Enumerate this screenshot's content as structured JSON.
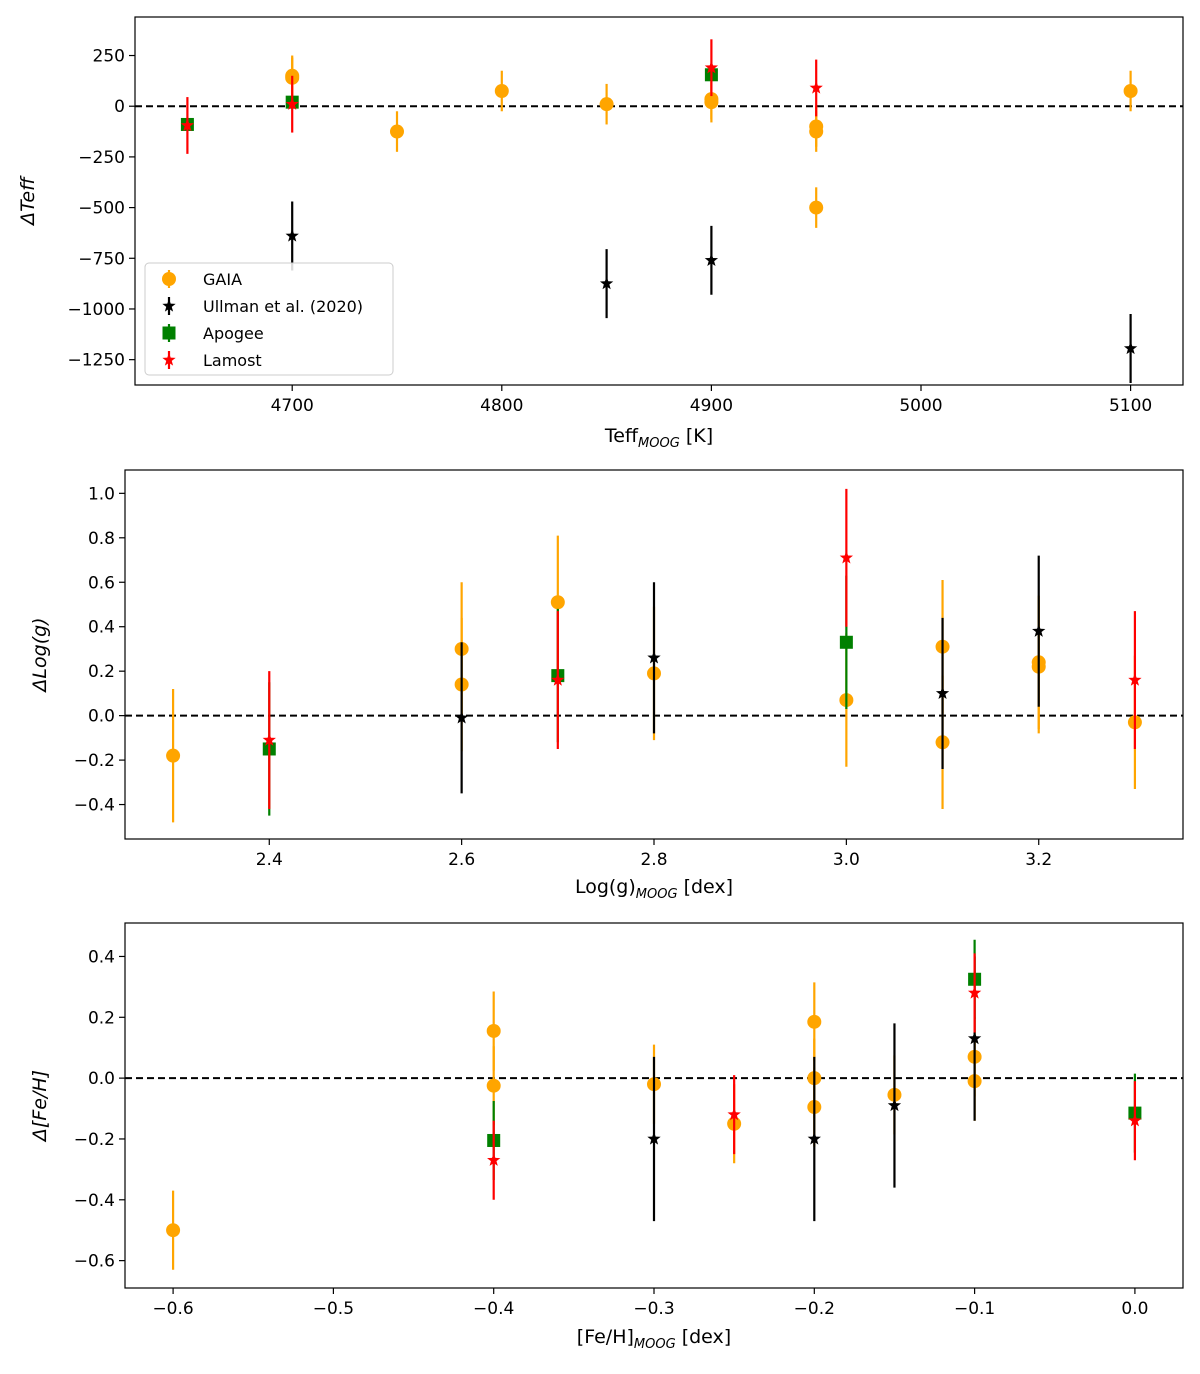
{
  "figure": {
    "legend": [
      {
        "name": "GAIA",
        "color": "#FFA500",
        "marker": "circle"
      },
      {
        "name": "Ullman et al. (2020)",
        "color": "#000000",
        "marker": "star"
      },
      {
        "name": "Apogee",
        "color": "#008000",
        "marker": "square"
      },
      {
        "name": "Lamost",
        "color": "#FF0000",
        "marker": "star"
      }
    ]
  },
  "chart_data": [
    {
      "type": "scatter",
      "title": "",
      "xlabel_main": "Teff",
      "xlabel_sub": "MOOG",
      "xlabel_unit": " [K]",
      "ylabel": "ΔTeff",
      "xlim": [
        4625,
        5125
      ],
      "ylim": [
        -1375,
        440
      ],
      "xticks": [
        4700,
        4800,
        4900,
        5000,
        5100
      ],
      "xtick_labels": [
        "4700",
        "4800",
        "4900",
        "5000",
        "5100"
      ],
      "yticks": [
        -1250,
        -1000,
        -750,
        -500,
        -250,
        0,
        250
      ],
      "ytick_labels": [
        "−1250",
        "−1000",
        "−750",
        "−500",
        "−250",
        "0",
        "250"
      ],
      "reference_line": 0,
      "legend_position": "lower-left",
      "series": [
        {
          "name": "GAIA",
          "color": "#FFA500",
          "marker": "circle",
          "points": [
            {
              "x": 4700,
              "y": 150,
              "err": 100
            },
            {
              "x": 4700,
              "y": 140,
              "err": 100
            },
            {
              "x": 4750,
              "y": -125,
              "err": 100
            },
            {
              "x": 4800,
              "y": 75,
              "err": 100
            },
            {
              "x": 4850,
              "y": 10,
              "err": 100
            },
            {
              "x": 4900,
              "y": 35,
              "err": 100
            },
            {
              "x": 4900,
              "y": 20,
              "err": 100
            },
            {
              "x": 4950,
              "y": -100,
              "err": 100
            },
            {
              "x": 4950,
              "y": -125,
              "err": 100
            },
            {
              "x": 4950,
              "y": -500,
              "err": 100
            },
            {
              "x": 5100,
              "y": 75,
              "err": 100
            }
          ]
        },
        {
          "name": "Ullman et al. (2020)",
          "color": "#000000",
          "marker": "star",
          "points": [
            {
              "x": 4700,
              "y": -640,
              "err": 170
            },
            {
              "x": 4850,
              "y": -875,
              "err": 170
            },
            {
              "x": 4900,
              "y": -760,
              "err": 170
            },
            {
              "x": 5100,
              "y": -1195,
              "err": 170
            }
          ]
        },
        {
          "name": "Apogee",
          "color": "#008000",
          "marker": "square",
          "points": [
            {
              "x": 4650,
              "y": -90,
              "err": 0
            },
            {
              "x": 4700,
              "y": 20,
              "err": 0
            },
            {
              "x": 4900,
              "y": 155,
              "err": 0
            }
          ]
        },
        {
          "name": "Lamost",
          "color": "#FF0000",
          "marker": "star",
          "points": [
            {
              "x": 4650,
              "y": -95,
              "err": 140
            },
            {
              "x": 4700,
              "y": 10,
              "err": 140
            },
            {
              "x": 4900,
              "y": 190,
              "err": 140
            },
            {
              "x": 4950,
              "y": 90,
              "err": 140
            }
          ]
        }
      ]
    },
    {
      "type": "scatter",
      "title": "",
      "xlabel_main": "Log(g)",
      "xlabel_sub": "MOOG",
      "xlabel_unit": " [dex]",
      "ylabel": "ΔLog(g)",
      "xlim": [
        2.25,
        3.35
      ],
      "ylim": [
        -0.555,
        1.105
      ],
      "xticks": [
        2.4,
        2.6,
        2.8,
        3.0,
        3.2
      ],
      "xtick_labels": [
        "2.4",
        "2.6",
        "2.8",
        "3.0",
        "3.2"
      ],
      "yticks": [
        -0.4,
        -0.2,
        0.0,
        0.2,
        0.4,
        0.6,
        0.8,
        1.0
      ],
      "ytick_labels": [
        "−0.4",
        "−0.2",
        "0.0",
        "0.2",
        "0.4",
        "0.6",
        "0.8",
        "1.0"
      ],
      "reference_line": 0,
      "series": [
        {
          "name": "GAIA",
          "color": "#FFA500",
          "marker": "circle",
          "points": [
            {
              "x": 2.3,
              "y": -0.18,
              "err": 0.3
            },
            {
              "x": 2.6,
              "y": 0.3,
              "err": 0.3
            },
            {
              "x": 2.6,
              "y": 0.14,
              "err": 0.3
            },
            {
              "x": 2.7,
              "y": 0.51,
              "err": 0.3
            },
            {
              "x": 2.8,
              "y": 0.19,
              "err": 0.3
            },
            {
              "x": 3.0,
              "y": 0.07,
              "err": 0.3
            },
            {
              "x": 3.1,
              "y": 0.31,
              "err": 0.3
            },
            {
              "x": 3.1,
              "y": -0.12,
              "err": 0.3
            },
            {
              "x": 3.2,
              "y": 0.24,
              "err": 0.3
            },
            {
              "x": 3.2,
              "y": 0.22,
              "err": 0.3
            },
            {
              "x": 3.3,
              "y": -0.03,
              "err": 0.3
            }
          ]
        },
        {
          "name": "Ullman et al. (2020)",
          "color": "#000000",
          "marker": "star",
          "points": [
            {
              "x": 2.6,
              "y": -0.01,
              "err": 0.34
            },
            {
              "x": 2.8,
              "y": 0.26,
              "err": 0.34
            },
            {
              "x": 3.1,
              "y": 0.1,
              "err": 0.34
            },
            {
              "x": 3.2,
              "y": 0.38,
              "err": 0.34
            }
          ]
        },
        {
          "name": "Apogee",
          "color": "#008000",
          "marker": "square",
          "points": [
            {
              "x": 2.4,
              "y": -0.15,
              "err": 0.3
            },
            {
              "x": 2.7,
              "y": 0.18,
              "err": 0.3
            },
            {
              "x": 3.0,
              "y": 0.33,
              "err": 0.3
            }
          ]
        },
        {
          "name": "Lamost",
          "color": "#FF0000",
          "marker": "star",
          "points": [
            {
              "x": 2.4,
              "y": -0.11,
              "err": 0.31
            },
            {
              "x": 2.7,
              "y": 0.16,
              "err": 0.31
            },
            {
              "x": 3.0,
              "y": 0.71,
              "err": 0.31
            },
            {
              "x": 3.3,
              "y": 0.16,
              "err": 0.31
            }
          ]
        }
      ]
    },
    {
      "type": "scatter",
      "title": "",
      "xlabel_main": "[Fe/H]",
      "xlabel_sub": "MOOG",
      "xlabel_unit": " [dex]",
      "ylabel": "Δ[Fe/H]",
      "xlim": [
        -0.63,
        0.03
      ],
      "ylim": [
        -0.69,
        0.51
      ],
      "xticks": [
        -0.6,
        -0.5,
        -0.4,
        -0.3,
        -0.2,
        -0.1,
        0.0
      ],
      "xtick_labels": [
        "−0.6",
        "−0.5",
        "−0.4",
        "−0.3",
        "−0.2",
        "−0.1",
        "0.0"
      ],
      "yticks": [
        -0.6,
        -0.4,
        -0.2,
        0.0,
        0.2,
        0.4
      ],
      "ytick_labels": [
        "−0.6",
        "−0.4",
        "−0.2",
        "0.0",
        "0.2",
        "0.4"
      ],
      "reference_line": 0,
      "series": [
        {
          "name": "GAIA",
          "color": "#FFA500",
          "marker": "circle",
          "points": [
            {
              "x": -0.6,
              "y": -0.5,
              "err": 0.13
            },
            {
              "x": -0.4,
              "y": 0.155,
              "err": 0.13
            },
            {
              "x": -0.4,
              "y": -0.025,
              "err": 0.13
            },
            {
              "x": -0.3,
              "y": -0.02,
              "err": 0.13
            },
            {
              "x": -0.25,
              "y": -0.15,
              "err": 0.13
            },
            {
              "x": -0.2,
              "y": 0.185,
              "err": 0.13
            },
            {
              "x": -0.2,
              "y": 0.0,
              "err": 0.13
            },
            {
              "x": -0.2,
              "y": -0.095,
              "err": 0.13
            },
            {
              "x": -0.15,
              "y": -0.055,
              "err": 0.13
            },
            {
              "x": -0.1,
              "y": 0.07,
              "err": 0.13
            },
            {
              "x": -0.1,
              "y": -0.01,
              "err": 0.13
            }
          ]
        },
        {
          "name": "Ullman et al. (2020)",
          "color": "#000000",
          "marker": "star",
          "points": [
            {
              "x": -0.3,
              "y": -0.2,
              "err": 0.27
            },
            {
              "x": -0.2,
              "y": -0.2,
              "err": 0.27
            },
            {
              "x": -0.15,
              "y": -0.09,
              "err": 0.27
            },
            {
              "x": -0.1,
              "y": 0.13,
              "err": 0.27
            }
          ]
        },
        {
          "name": "Apogee",
          "color": "#008000",
          "marker": "square",
          "points": [
            {
              "x": -0.4,
              "y": -0.205,
              "err": 0.13
            },
            {
              "x": -0.1,
              "y": 0.325,
              "err": 0.13
            },
            {
              "x": 0.0,
              "y": -0.115,
              "err": 0.13
            }
          ]
        },
        {
          "name": "Lamost",
          "color": "#FF0000",
          "marker": "star",
          "points": [
            {
              "x": -0.4,
              "y": -0.27,
              "err": 0.13
            },
            {
              "x": -0.25,
              "y": -0.12,
              "err": 0.13
            },
            {
              "x": -0.1,
              "y": 0.28,
              "err": 0.13
            },
            {
              "x": 0.0,
              "y": -0.14,
              "err": 0.13
            }
          ]
        }
      ]
    }
  ]
}
